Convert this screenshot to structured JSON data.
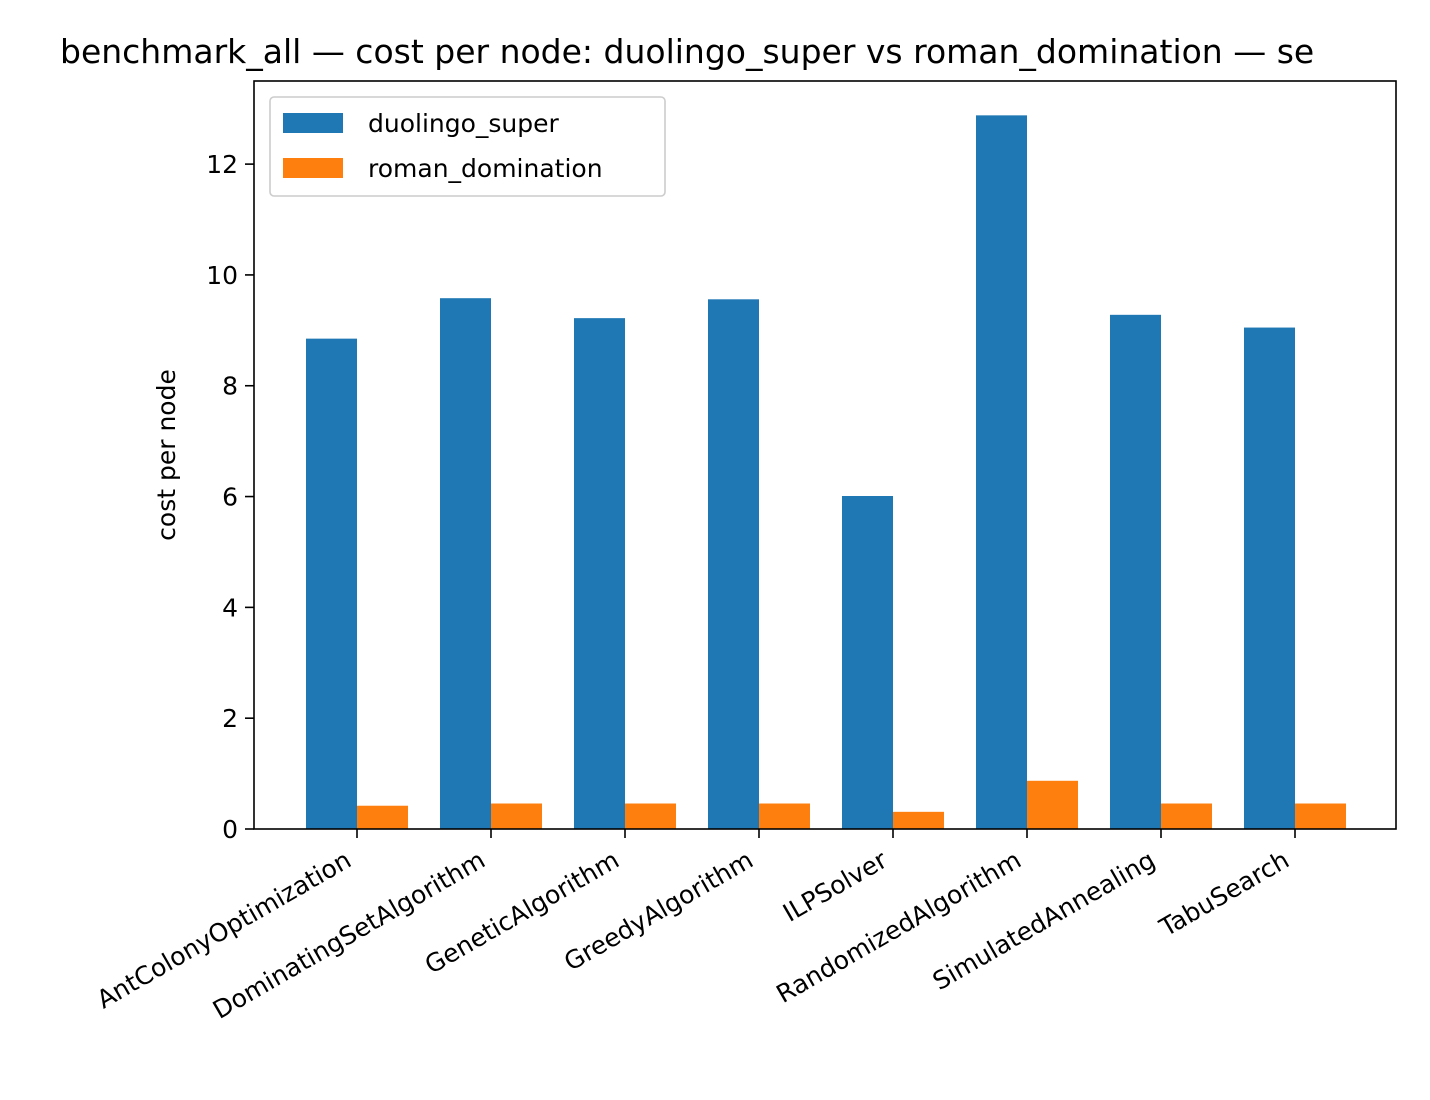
{
  "chart_data": {
    "type": "bar",
    "title": "benchmark_all — cost per node: duolingo_super vs roman_domination — se",
    "xlabel": "",
    "ylabel": "cost per node",
    "ylim": [
      0,
      13.5
    ],
    "yticks": [
      0,
      2,
      4,
      6,
      8,
      10,
      12
    ],
    "grid": false,
    "legend_position": "top-left",
    "categories": [
      "AntColonyOptimization",
      "DominatingSetAlgorithm",
      "GeneticAlgorithm",
      "GreedyAlgorithm",
      "ILPSolver",
      "RandomizedAlgorithm",
      "SimulatedAnnealing",
      "TabuSearch"
    ],
    "series": [
      {
        "name": "duolingo_super",
        "color": "#1f77b4",
        "values": [
          8.85,
          9.58,
          9.22,
          9.56,
          6.01,
          12.88,
          9.28,
          9.05
        ]
      },
      {
        "name": "roman_domination",
        "color": "#ff7f0e",
        "values": [
          0.42,
          0.46,
          0.46,
          0.46,
          0.31,
          0.87,
          0.46,
          0.46
        ]
      }
    ]
  }
}
